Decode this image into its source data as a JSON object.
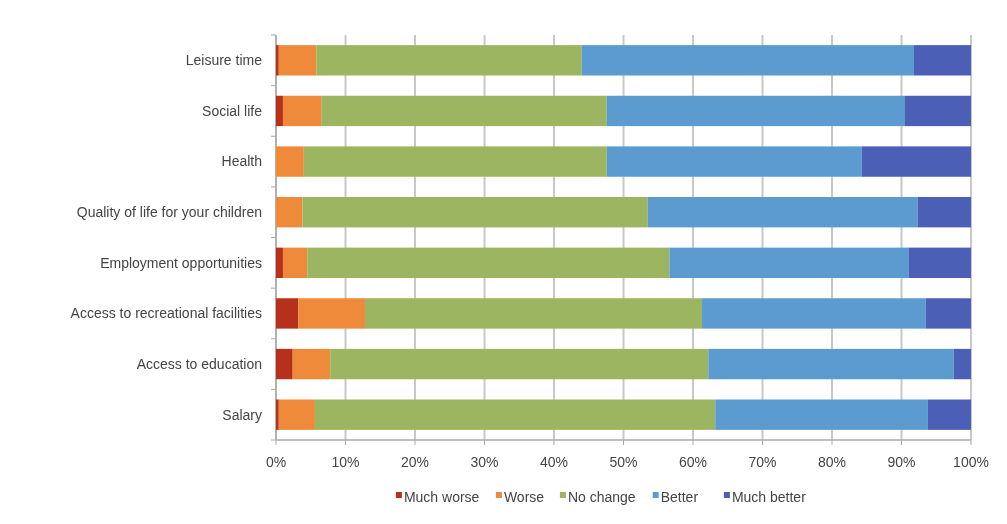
{
  "chart_data": {
    "type": "bar",
    "orientation": "horizontal",
    "stacked": true,
    "categories": [
      "Leisure time",
      "Social life",
      "Health",
      "Quality of life for your children",
      "Employment opportunities",
      "Access to recreational facilities",
      "Access to education",
      "Salary"
    ],
    "series": [
      {
        "name": "Much worse",
        "color": "#b7301c",
        "values": [
          0.4,
          1,
          0,
          0,
          1,
          3.2,
          2.4,
          0.4
        ]
      },
      {
        "name": "Worse",
        "color": "#ee8a3a",
        "values": [
          5.4,
          5.5,
          4,
          3.8,
          3.5,
          9.6,
          5.4,
          5.2
        ]
      },
      {
        "name": "No change",
        "color": "#9bb560",
        "values": [
          38.2,
          41.1,
          43.6,
          49.7,
          52.1,
          48.5,
          54.4,
          57.6
        ]
      },
      {
        "name": "Better",
        "color": "#5b9bd0",
        "values": [
          47.8,
          42.9,
          36.7,
          38.8,
          34.4,
          32.2,
          35.3,
          30.6
        ]
      },
      {
        "name": "Much better",
        "color": "#4a5fb5",
        "values": [
          8.2,
          9.5,
          15.7,
          7.7,
          9,
          6.5,
          2.5,
          6.2
        ]
      }
    ],
    "xlim": [
      0,
      100
    ],
    "xticks": [
      {
        "value": 0,
        "label": "0%"
      },
      {
        "value": 10,
        "label": "10%"
      },
      {
        "value": 20,
        "label": "20%"
      },
      {
        "value": 30,
        "label": "30%"
      },
      {
        "value": 40,
        "label": "40%"
      },
      {
        "value": 50,
        "label": "50%"
      },
      {
        "value": 60,
        "label": "60%"
      },
      {
        "value": 70,
        "label": "70%"
      },
      {
        "value": 80,
        "label": "80%"
      },
      {
        "value": 90,
        "label": "90%"
      },
      {
        "value": 100,
        "label": "100%"
      }
    ],
    "grid": "x",
    "legend": "bottom"
  }
}
